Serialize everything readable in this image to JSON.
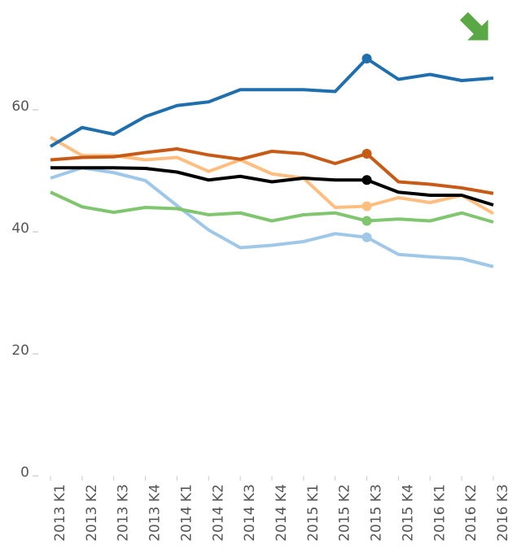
{
  "chart_data": {
    "type": "line",
    "categories": [
      "2013 K1",
      "2013 K2",
      "2013 K3",
      "2013 K4",
      "2014 K1",
      "2014 K2",
      "2014 K3",
      "2014 K4",
      "2015 K1",
      "2015 K2",
      "2015 K3",
      "2015 K4",
      "2016 K1",
      "2016 K2",
      "2016 K3"
    ],
    "series": [
      {
        "color": "#9fc8e8",
        "values": [
          48.8,
          50.5,
          49.7,
          48.4,
          44.3,
          40.3,
          37.4,
          37.8,
          38.4,
          39.7,
          39.1,
          36.3,
          35.9,
          35.6,
          34.3
        ]
      },
      {
        "color": "#7fc66f",
        "values": [
          46.5,
          44.1,
          43.2,
          44,
          43.8,
          42.8,
          43.1,
          41.8,
          42.8,
          43.1,
          41.8,
          42.1,
          41.8,
          43.1,
          41.6
        ]
      },
      {
        "color": "#ffbe7f",
        "values": [
          55.5,
          52.5,
          52.5,
          51.8,
          52.2,
          49.9,
          51.8,
          49.5,
          48.8,
          44,
          44.2,
          45.6,
          44.8,
          46,
          43
        ]
      },
      {
        "color": "#c85a17",
        "values": [
          51.8,
          52.2,
          52.3,
          53,
          53.6,
          52.6,
          51.9,
          53.2,
          52.8,
          51.2,
          52.8,
          48.2,
          47.8,
          47.2,
          46.3
        ]
      },
      {
        "color": "#000000",
        "values": [
          50.5,
          50.5,
          50.5,
          50.4,
          49.8,
          48.5,
          49.1,
          48.2,
          48.8,
          48.5,
          48.5,
          46.5,
          46,
          46,
          44.4
        ]
      },
      {
        "color": "#1f6fae",
        "values": [
          54,
          57.1,
          56,
          58.9,
          60.7,
          61.3,
          63.3,
          63.3,
          63.3,
          63,
          68.4,
          65,
          65.8,
          64.8,
          65.2
        ]
      }
    ],
    "highlight_category": "2015 K3",
    "ylim": [
      0,
      78
    ],
    "yticks": [
      0,
      20,
      40,
      60
    ]
  }
}
